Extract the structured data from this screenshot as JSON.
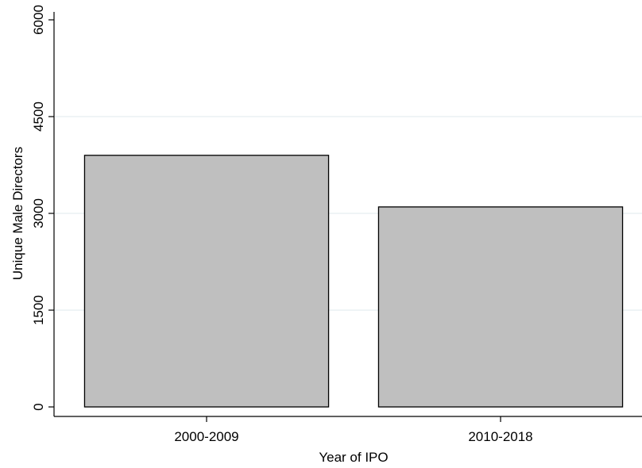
{
  "chart_data": {
    "type": "bar",
    "categories": [
      "2000-2009",
      "2010-2018"
    ],
    "values": [
      3900,
      3100
    ],
    "xlabel": "Year of IPO",
    "ylabel": "Unique Male Directors",
    "ylim": [
      0,
      6000
    ],
    "yticks": [
      0,
      1500,
      3000,
      4500,
      6000
    ],
    "ytick_labels": [
      "0",
      "1500",
      "3000",
      "4500",
      "6000"
    ],
    "grid": true,
    "colors": {
      "bar_fill": "#bfbfbf",
      "bar_stroke": "#000000",
      "grid": "#eaf0f3",
      "axis": "#000000"
    }
  }
}
